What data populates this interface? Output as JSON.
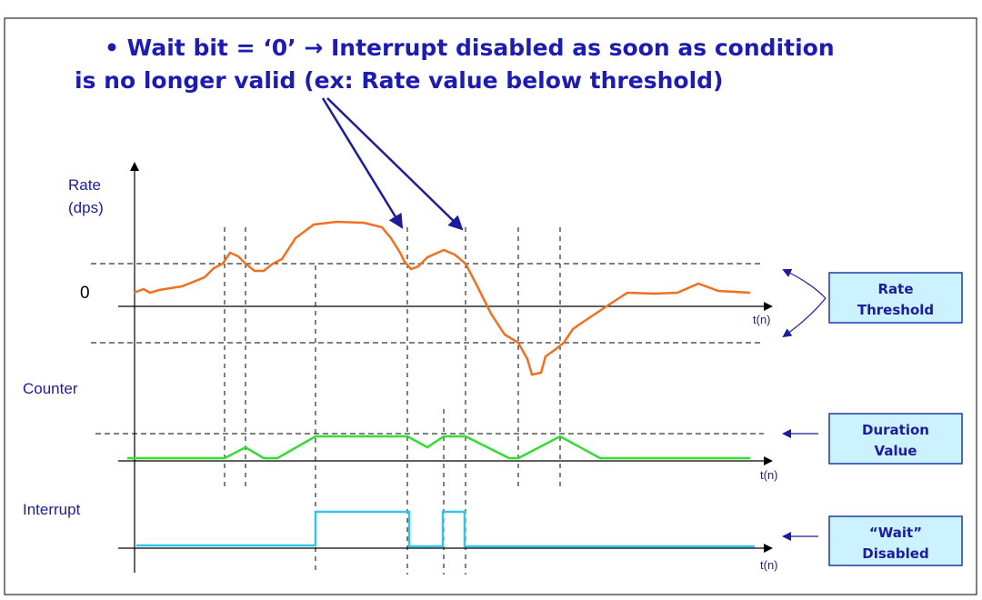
{
  "title_lines": [
    "• Wait bit = ‘0’ → Interrupt disabled as soon as condition",
    "is no longer valid (ex: Rate value below threshold)"
  ],
  "rate_axis": {
    "label_lines": [
      "Rate",
      "(dps)"
    ],
    "zero": "0",
    "time": "t(n)"
  },
  "counter_axis": {
    "label": "Counter",
    "time": "t(n)"
  },
  "interrupt_axis": {
    "label": "Interrupt",
    "time": "t(n)"
  },
  "boxes": [
    {
      "lines": [
        "Rate",
        "Threshold"
      ]
    },
    {
      "lines": [
        "Duration",
        "Value"
      ]
    },
    {
      "lines": [
        "“Wait”",
        "Disabled"
      ]
    }
  ]
}
